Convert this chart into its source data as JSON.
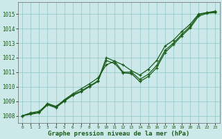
{
  "xlabel": "Graphe pression niveau de la mer (hPa)",
  "xlim": [
    -0.5,
    23.5
  ],
  "ylim": [
    1007.5,
    1015.8
  ],
  "yticks": [
    1008,
    1009,
    1010,
    1011,
    1012,
    1013,
    1014,
    1015
  ],
  "xticks": [
    0,
    1,
    2,
    3,
    4,
    5,
    6,
    7,
    8,
    9,
    10,
    11,
    12,
    13,
    14,
    15,
    16,
    17,
    18,
    19,
    20,
    21,
    22,
    23
  ],
  "bg_color": "#cce8e8",
  "grid_color": "#99cccc",
  "line_color": "#1a5c1a",
  "series": {
    "line1": {
      "x": [
        0,
        1,
        2,
        3,
        4,
        5,
        6,
        7,
        8,
        9,
        10,
        11,
        12,
        13,
        14,
        15,
        16,
        17,
        18,
        19,
        20,
        21,
        22,
        23
      ],
      "y": [
        1008.0,
        1008.2,
        1008.3,
        1008.8,
        1008.6,
        1009.1,
        1009.5,
        1009.85,
        1010.2,
        1010.6,
        1011.5,
        1011.75,
        1011.5,
        1011.1,
        1010.8,
        1011.2,
        1011.8,
        1012.8,
        1013.2,
        1013.8,
        1014.3,
        1015.0,
        1015.1,
        1015.2
      ]
    },
    "line2": {
      "x": [
        0,
        1,
        2,
        3,
        4,
        5,
        6,
        7,
        8,
        9,
        10,
        11,
        12,
        13,
        14,
        15,
        16,
        17,
        18,
        19,
        20,
        21,
        22,
        23
      ],
      "y": [
        1008.0,
        1008.15,
        1008.25,
        1008.85,
        1008.65,
        1009.05,
        1009.45,
        1009.7,
        1010.05,
        1010.4,
        1012.0,
        1011.75,
        1011.0,
        1011.0,
        1010.5,
        1010.85,
        1011.45,
        1012.5,
        1013.0,
        1013.6,
        1014.15,
        1014.95,
        1015.1,
        1015.15
      ]
    },
    "line3": {
      "x": [
        0,
        1,
        2,
        3,
        4,
        5,
        6,
        7,
        8,
        9,
        10,
        11,
        12,
        13,
        14,
        15,
        16,
        17,
        18,
        19,
        20,
        21,
        22,
        23
      ],
      "y": [
        1008.0,
        1008.1,
        1008.2,
        1008.75,
        1008.55,
        1009.0,
        1009.4,
        1009.65,
        1010.0,
        1010.35,
        1011.8,
        1011.6,
        1010.95,
        1010.9,
        1010.35,
        1010.7,
        1011.3,
        1012.35,
        1012.9,
        1013.5,
        1014.05,
        1014.85,
        1015.05,
        1015.1
      ]
    }
  },
  "tick_color": "#1a5c1a",
  "label_fontsize": 5.5,
  "xlabel_fontsize": 6.5
}
